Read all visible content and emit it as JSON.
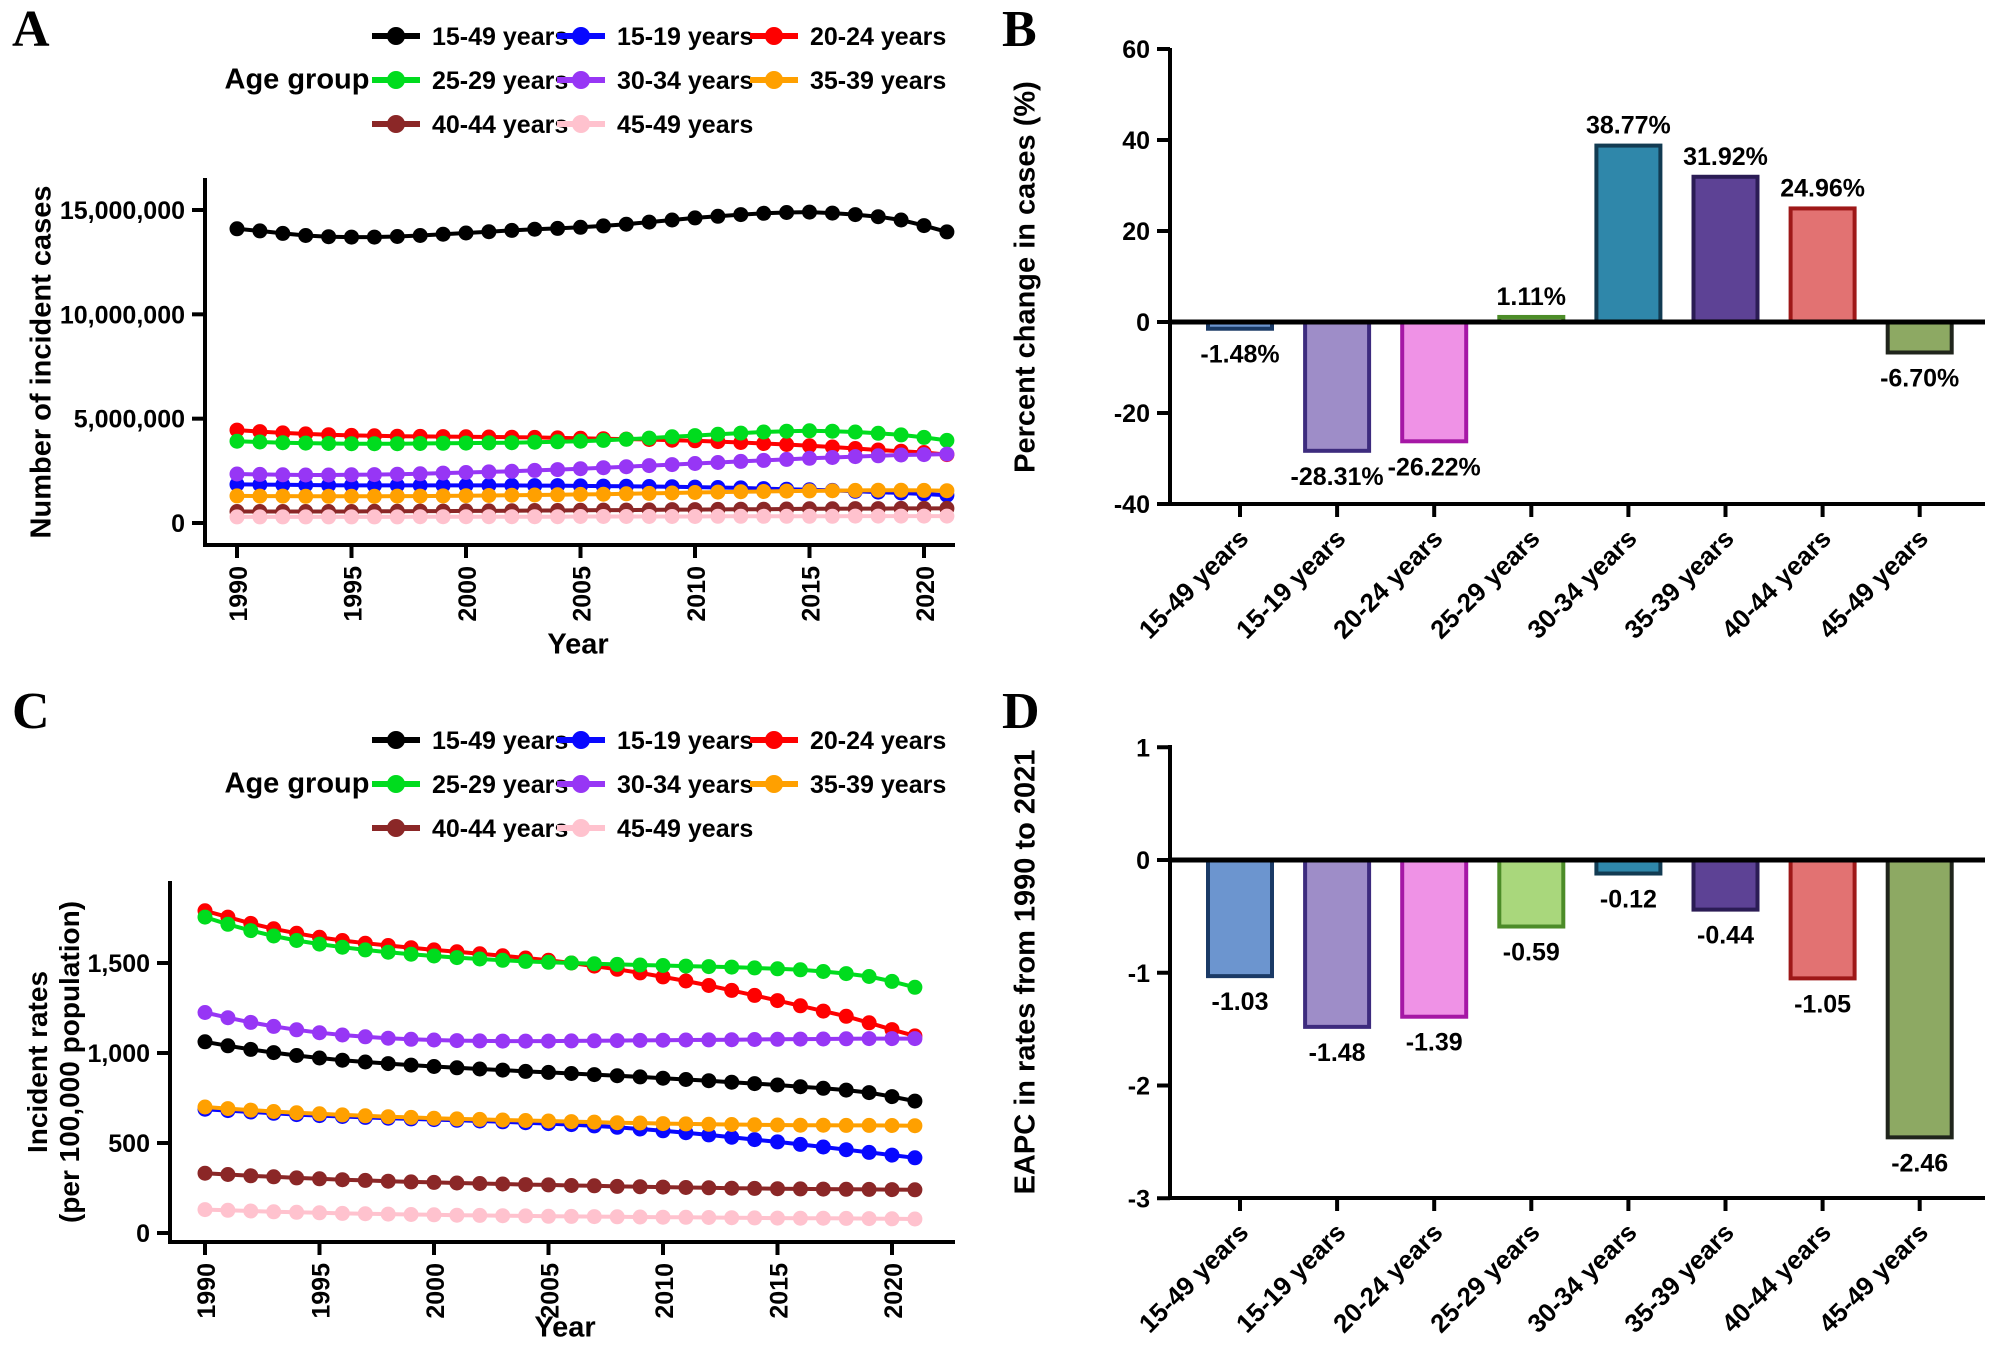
{
  "chart_data": [
    {
      "panel_label": "A",
      "type": "line",
      "legend_title": "Age group",
      "ylabel": "Number of incident cases",
      "xlabel": "Year",
      "ylim": [
        0,
        15000000
      ],
      "yticks": [
        {
          "v": 0,
          "label": "0"
        },
        {
          "v": 5000000,
          "label": "5,000,000"
        },
        {
          "v": 10000000,
          "label": "10,000,000"
        },
        {
          "v": 15000000,
          "label": "15,000,000"
        }
      ],
      "xticks": [
        {
          "v": 1990,
          "label": "1990"
        },
        {
          "v": 1995,
          "label": "1995"
        },
        {
          "v": 2000,
          "label": "2000"
        },
        {
          "v": 2005,
          "label": "2005"
        },
        {
          "v": 2010,
          "label": "2010"
        },
        {
          "v": 2015,
          "label": "2015"
        },
        {
          "v": 2020,
          "label": "2020"
        }
      ],
      "x": [
        1990,
        1991,
        1992,
        1993,
        1994,
        1995,
        1996,
        1997,
        1998,
        1999,
        2000,
        2001,
        2002,
        2003,
        2004,
        2005,
        2006,
        2007,
        2008,
        2009,
        2010,
        2011,
        2012,
        2013,
        2014,
        2015,
        2016,
        2017,
        2018,
        2019,
        2020,
        2021
      ],
      "series": [
        {
          "name": "15-49 years",
          "color": "#000000",
          "values": [
            14100000,
            14000000,
            13880000,
            13780000,
            13720000,
            13700000,
            13700000,
            13730000,
            13780000,
            13840000,
            13900000,
            13960000,
            14020000,
            14080000,
            14120000,
            14170000,
            14240000,
            14320000,
            14420000,
            14520000,
            14620000,
            14700000,
            14780000,
            14840000,
            14880000,
            14900000,
            14850000,
            14780000,
            14680000,
            14520000,
            14250000,
            13950000
          ]
        },
        {
          "name": "15-19 years",
          "color": "#0808FF",
          "values": [
            1850000,
            1840000,
            1830000,
            1820000,
            1810000,
            1800000,
            1800000,
            1800000,
            1800000,
            1800000,
            1800000,
            1800000,
            1800000,
            1790000,
            1790000,
            1780000,
            1770000,
            1760000,
            1750000,
            1740000,
            1720000,
            1700000,
            1680000,
            1650000,
            1620000,
            1590000,
            1560000,
            1520000,
            1480000,
            1440000,
            1390000,
            1330000
          ]
        },
        {
          "name": "20-24 years",
          "color": "#FE0000",
          "values": [
            4450000,
            4380000,
            4320000,
            4270000,
            4230000,
            4200000,
            4180000,
            4160000,
            4150000,
            4140000,
            4130000,
            4120000,
            4110000,
            4100000,
            4080000,
            4060000,
            4040000,
            4020000,
            4000000,
            3970000,
            3940000,
            3900000,
            3860000,
            3810000,
            3760000,
            3700000,
            3640000,
            3570000,
            3500000,
            3440000,
            3380000,
            3280000
          ]
        },
        {
          "name": "25-29 years",
          "color": "#00DC1E",
          "values": [
            3920000,
            3880000,
            3850000,
            3830000,
            3810000,
            3800000,
            3800000,
            3800000,
            3810000,
            3820000,
            3830000,
            3840000,
            3850000,
            3870000,
            3890000,
            3920000,
            3960000,
            4010000,
            4070000,
            4130000,
            4190000,
            4250000,
            4310000,
            4360000,
            4400000,
            4420000,
            4400000,
            4360000,
            4300000,
            4220000,
            4100000,
            3960000
          ]
        },
        {
          "name": "30-34 years",
          "color": "#9736F5",
          "values": [
            2350000,
            2330000,
            2310000,
            2300000,
            2300000,
            2310000,
            2320000,
            2340000,
            2360000,
            2390000,
            2420000,
            2450000,
            2480000,
            2520000,
            2560000,
            2600000,
            2650000,
            2700000,
            2750000,
            2800000,
            2850000,
            2900000,
            2950000,
            3000000,
            3050000,
            3100000,
            3140000,
            3180000,
            3220000,
            3260000,
            3280000,
            3300000
          ]
        },
        {
          "name": "35-39 years",
          "color": "#FFA000",
          "values": [
            1300000,
            1290000,
            1290000,
            1280000,
            1280000,
            1280000,
            1280000,
            1290000,
            1290000,
            1300000,
            1310000,
            1320000,
            1330000,
            1340000,
            1350000,
            1370000,
            1380000,
            1400000,
            1420000,
            1440000,
            1460000,
            1480000,
            1500000,
            1510000,
            1530000,
            1540000,
            1550000,
            1560000,
            1570000,
            1570000,
            1560000,
            1550000
          ]
        },
        {
          "name": "40-44 years",
          "color": "#8B2727",
          "values": [
            550000,
            550000,
            550000,
            550000,
            550000,
            550000,
            560000,
            560000,
            570000,
            570000,
            580000,
            580000,
            590000,
            600000,
            600000,
            610000,
            620000,
            620000,
            630000,
            640000,
            640000,
            650000,
            660000,
            660000,
            670000,
            680000,
            680000,
            690000,
            690000,
            700000,
            700000,
            700000
          ]
        },
        {
          "name": "45-49 years",
          "color": "#FFC2CE",
          "values": [
            290000,
            290000,
            290000,
            290000,
            290000,
            290000,
            290000,
            290000,
            300000,
            300000,
            300000,
            300000,
            300000,
            300000,
            300000,
            310000,
            310000,
            310000,
            310000,
            310000,
            310000,
            320000,
            320000,
            320000,
            320000,
            320000,
            320000,
            330000,
            330000,
            330000,
            330000,
            330000
          ]
        }
      ]
    },
    {
      "panel_label": "B",
      "type": "bar",
      "ylabel": "Percent change in cases (%)",
      "ylim": [
        -40,
        60
      ],
      "yticks": [
        {
          "v": 60,
          "label": "60"
        },
        {
          "v": 40,
          "label": "40"
        },
        {
          "v": 20,
          "label": "20"
        },
        {
          "v": 0,
          "label": "0"
        },
        {
          "v": -20,
          "label": "-20"
        },
        {
          "v": -40,
          "label": "-40"
        }
      ],
      "categories": [
        "15-49 years",
        "15-19 years",
        "20-24 years",
        "25-29 years",
        "30-34 years",
        "35-39 years",
        "40-44 years",
        "45-49 years"
      ],
      "values": [
        -1.48,
        -28.31,
        -26.22,
        1.11,
        38.77,
        31.92,
        24.96,
        -6.7
      ],
      "labels": [
        "-1.48%",
        "-28.31%",
        "-26.22%",
        "1.11%",
        "38.77%",
        "31.92%",
        "24.96%",
        "-6.70%"
      ],
      "fills": [
        "#6C95CF",
        "#9E8DC8",
        "#EF92E6",
        "#A9D77C",
        "#2F87AA",
        "#5D4295",
        "#E27272",
        "#8DA963"
      ],
      "strokes": [
        "#1A3A66",
        "#3D2B7E",
        "#A517A5",
        "#4C8C28",
        "#123B52",
        "#2B1C55",
        "#9E1818",
        "#20251C"
      ]
    },
    {
      "panel_label": "C",
      "type": "line",
      "legend_title": "Age group",
      "ylabel_line1": "Incident rates",
      "ylabel_line2": "(per 100,000 population)",
      "xlabel": "Year",
      "ylim": [
        0,
        1500
      ],
      "yticks": [
        {
          "v": 0,
          "label": "0"
        },
        {
          "v": 500,
          "label": "500"
        },
        {
          "v": 1000,
          "label": "1,000"
        },
        {
          "v": 1500,
          "label": "1,500"
        }
      ],
      "xticks": [
        {
          "v": 1990,
          "label": "1990"
        },
        {
          "v": 1995,
          "label": "1995"
        },
        {
          "v": 2000,
          "label": "2000"
        },
        {
          "v": 2005,
          "label": "2005"
        },
        {
          "v": 2010,
          "label": "2010"
        },
        {
          "v": 2015,
          "label": "2015"
        },
        {
          "v": 2020,
          "label": "2020"
        }
      ],
      "x": [
        1990,
        1991,
        1992,
        1993,
        1994,
        1995,
        1996,
        1997,
        1998,
        1999,
        2000,
        2001,
        2002,
        2003,
        2004,
        2005,
        2006,
        2007,
        2008,
        2009,
        2010,
        2011,
        2012,
        2013,
        2014,
        2015,
        2016,
        2017,
        2018,
        2019,
        2020,
        2021
      ],
      "series": [
        {
          "name": "15-49 years",
          "color": "#000000",
          "values": [
            1062,
            1040,
            1020,
            1002,
            986,
            972,
            960,
            950,
            941,
            933,
            925,
            918,
            911,
            905,
            898,
            892,
            886,
            880,
            874,
            867,
            860,
            853,
            846,
            838,
            830,
            822,
            813,
            804,
            794,
            780,
            758,
            733
          ]
        },
        {
          "name": "15-19 years",
          "color": "#0808FF",
          "values": [
            688,
            680,
            672,
            665,
            658,
            652,
            647,
            642,
            638,
            634,
            630,
            626,
            622,
            618,
            613,
            608,
            602,
            595,
            587,
            578,
            568,
            557,
            545,
            532,
            519,
            506,
            492,
            478,
            463,
            448,
            433,
            418
          ]
        },
        {
          "name": "20-24 years",
          "color": "#FE0000",
          "values": [
            1790,
            1755,
            1720,
            1690,
            1665,
            1643,
            1625,
            1610,
            1597,
            1585,
            1573,
            1562,
            1551,
            1540,
            1528,
            1515,
            1500,
            1483,
            1465,
            1445,
            1423,
            1400,
            1375,
            1348,
            1320,
            1291,
            1262,
            1233,
            1204,
            1168,
            1130,
            1095
          ]
        },
        {
          "name": "25-29 years",
          "color": "#00DC1E",
          "values": [
            1755,
            1715,
            1680,
            1650,
            1625,
            1605,
            1588,
            1573,
            1560,
            1549,
            1539,
            1530,
            1522,
            1515,
            1509,
            1504,
            1500,
            1496,
            1492,
            1489,
            1486,
            1483,
            1480,
            1477,
            1473,
            1468,
            1462,
            1453,
            1441,
            1425,
            1398,
            1365
          ]
        },
        {
          "name": "30-34 years",
          "color": "#9736F5",
          "values": [
            1225,
            1196,
            1170,
            1148,
            1129,
            1113,
            1100,
            1090,
            1082,
            1076,
            1072,
            1069,
            1067,
            1066,
            1066,
            1066,
            1067,
            1068,
            1069,
            1070,
            1071,
            1072,
            1073,
            1074,
            1075,
            1076,
            1077,
            1078,
            1079,
            1080,
            1080,
            1080
          ]
        },
        {
          "name": "35-39 years",
          "color": "#FFA000",
          "values": [
            700,
            691,
            683,
            675,
            668,
            662,
            656,
            651,
            646,
            642,
            638,
            634,
            631,
            628,
            625,
            622,
            619,
            616,
            613,
            611,
            608,
            606,
            604,
            603,
            601,
            600,
            599,
            599,
            598,
            598,
            597,
            596
          ]
        },
        {
          "name": "40-44 years",
          "color": "#8B2727",
          "values": [
            332,
            325,
            318,
            312,
            306,
            301,
            296,
            292,
            288,
            284,
            281,
            278,
            275,
            272,
            269,
            267,
            264,
            262,
            259,
            257,
            255,
            253,
            251,
            249,
            248,
            246,
            245,
            244,
            243,
            242,
            241,
            240
          ]
        },
        {
          "name": "45-49 years",
          "color": "#FFC2CE",
          "values": [
            130,
            126,
            122,
            118,
            115,
            112,
            109,
            107,
            105,
            103,
            101,
            99,
            98,
            96,
            95,
            93,
            92,
            91,
            90,
            89,
            88,
            87,
            86,
            85,
            84,
            83,
            82,
            82,
            81,
            80,
            79,
            78
          ]
        }
      ]
    },
    {
      "panel_label": "D",
      "type": "bar",
      "ylabel": "EAPC in rates from 1990 to 2021",
      "ylim": [
        -3,
        1
      ],
      "yticks": [
        {
          "v": 1,
          "label": "1"
        },
        {
          "v": 0,
          "label": "0"
        },
        {
          "v": -1,
          "label": "-1"
        },
        {
          "v": -2,
          "label": "-2"
        },
        {
          "v": -3,
          "label": "-3"
        }
      ],
      "categories": [
        "15-49 years",
        "15-19 years",
        "20-24 years",
        "25-29 years",
        "30-34 years",
        "35-39 years",
        "40-44 years",
        "45-49 years"
      ],
      "values": [
        -1.03,
        -1.48,
        -1.39,
        -0.59,
        -0.12,
        -0.44,
        -1.05,
        -2.46
      ],
      "labels": [
        "-1.03",
        "-1.48",
        "-1.39",
        "-0.59",
        "-0.12",
        "-0.44",
        "-1.05",
        "-2.46"
      ],
      "fills": [
        "#6C95CF",
        "#9E8DC8",
        "#EF92E6",
        "#A9D77C",
        "#2F87AA",
        "#5D4295",
        "#E27272",
        "#8DA963"
      ],
      "strokes": [
        "#1A3A66",
        "#3D2B7E",
        "#A517A5",
        "#4C8C28",
        "#123B52",
        "#2B1C55",
        "#9E1818",
        "#20251C"
      ]
    }
  ]
}
